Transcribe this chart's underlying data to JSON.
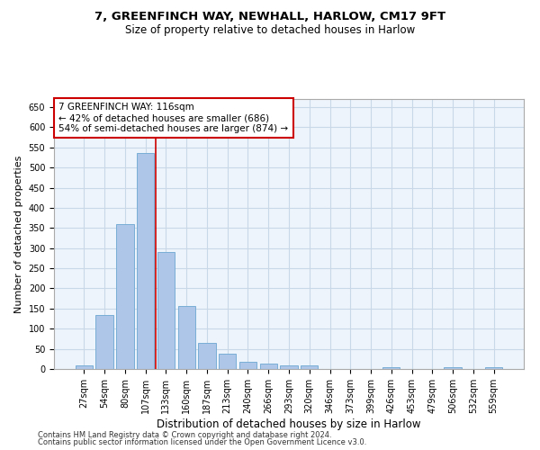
{
  "title1": "7, GREENFINCH WAY, NEWHALL, HARLOW, CM17 9FT",
  "title2": "Size of property relative to detached houses in Harlow",
  "xlabel": "Distribution of detached houses by size in Harlow",
  "ylabel": "Number of detached properties",
  "categories": [
    "27sqm",
    "54sqm",
    "80sqm",
    "107sqm",
    "133sqm",
    "160sqm",
    "187sqm",
    "213sqm",
    "240sqm",
    "266sqm",
    "293sqm",
    "320sqm",
    "346sqm",
    "373sqm",
    "399sqm",
    "426sqm",
    "453sqm",
    "479sqm",
    "506sqm",
    "532sqm",
    "559sqm"
  ],
  "values": [
    10,
    133,
    360,
    535,
    290,
    157,
    65,
    38,
    17,
    13,
    10,
    8,
    0,
    0,
    0,
    5,
    0,
    0,
    5,
    0,
    5
  ],
  "bar_color": "#aec6e8",
  "bar_edge_color": "#7aaed6",
  "grid_color": "#c8d8e8",
  "background_color": "#eef4fb",
  "annotation_text": "7 GREENFINCH WAY: 116sqm\n← 42% of detached houses are smaller (686)\n54% of semi-detached houses are larger (874) →",
  "annotation_box_color": "#ffffff",
  "annotation_box_edge": "#cc0000",
  "ylim": [
    0,
    670
  ],
  "yticks": [
    0,
    50,
    100,
    150,
    200,
    250,
    300,
    350,
    400,
    450,
    500,
    550,
    600,
    650
  ],
  "footer1": "Contains HM Land Registry data © Crown copyright and database right 2024.",
  "footer2": "Contains public sector information licensed under the Open Government Licence v3.0.",
  "title_fontsize": 9.5,
  "subtitle_fontsize": 8.5,
  "ylabel_fontsize": 8,
  "xlabel_fontsize": 8.5,
  "tick_fontsize": 7,
  "annot_fontsize": 7.5,
  "footer_fontsize": 6
}
